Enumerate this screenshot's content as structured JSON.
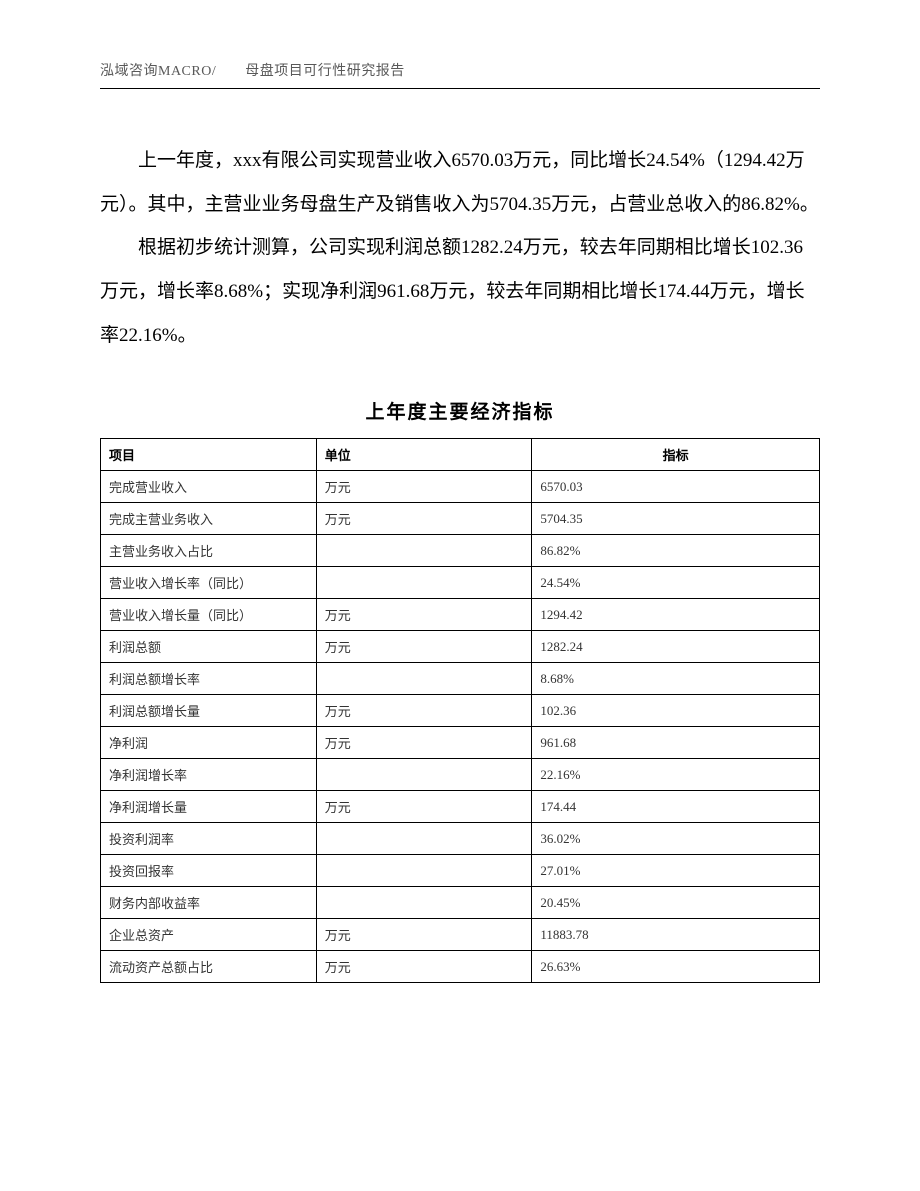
{
  "header": {
    "text": "泓域咨询MACRO/　　母盘项目可行性研究报告"
  },
  "paragraphs": {
    "p1": "上一年度，xxx有限公司实现营业收入6570.03万元，同比增长24.54%（1294.42万元）。其中，主营业业务母盘生产及销售收入为5704.35万元，占营业总收入的86.82%。",
    "p2": "根据初步统计测算，公司实现利润总额1282.24万元，较去年同期相比增长102.36万元，增长率8.68%；实现净利润961.68万元，较去年同期相比增长174.44万元，增长率22.16%。"
  },
  "table": {
    "title": "上年度主要经济指标",
    "headers": {
      "item": "项目",
      "unit": "单位",
      "value": "指标"
    },
    "rows": [
      {
        "item": "完成营业收入",
        "unit": "万元",
        "value": "6570.03"
      },
      {
        "item": "完成主营业务收入",
        "unit": "万元",
        "value": "5704.35"
      },
      {
        "item": "主营业务收入占比",
        "unit": "",
        "value": "86.82%"
      },
      {
        "item": "营业收入增长率（同比）",
        "unit": "",
        "value": "24.54%"
      },
      {
        "item": "营业收入增长量（同比）",
        "unit": "万元",
        "value": "1294.42"
      },
      {
        "item": "利润总额",
        "unit": "万元",
        "value": "1282.24"
      },
      {
        "item": "利润总额增长率",
        "unit": "",
        "value": "8.68%"
      },
      {
        "item": "利润总额增长量",
        "unit": "万元",
        "value": "102.36"
      },
      {
        "item": "净利润",
        "unit": "万元",
        "value": "961.68"
      },
      {
        "item": "净利润增长率",
        "unit": "",
        "value": "22.16%"
      },
      {
        "item": "净利润增长量",
        "unit": "万元",
        "value": "174.44"
      },
      {
        "item": "投资利润率",
        "unit": "",
        "value": "36.02%"
      },
      {
        "item": "投资回报率",
        "unit": "",
        "value": "27.01%"
      },
      {
        "item": "财务内部收益率",
        "unit": "",
        "value": "20.45%"
      },
      {
        "item": "企业总资产",
        "unit": "万元",
        "value": "11883.78"
      },
      {
        "item": "流动资产总额占比",
        "unit": "万元",
        "value": "26.63%"
      }
    ]
  },
  "styles": {
    "background_color": "#ffffff",
    "text_color": "#000000",
    "header_color": "#595959",
    "table_text_color": "#333333",
    "border_color": "#000000",
    "body_fontsize": 19,
    "header_fontsize": 14,
    "table_fontsize": 13,
    "line_height": 2.3
  }
}
